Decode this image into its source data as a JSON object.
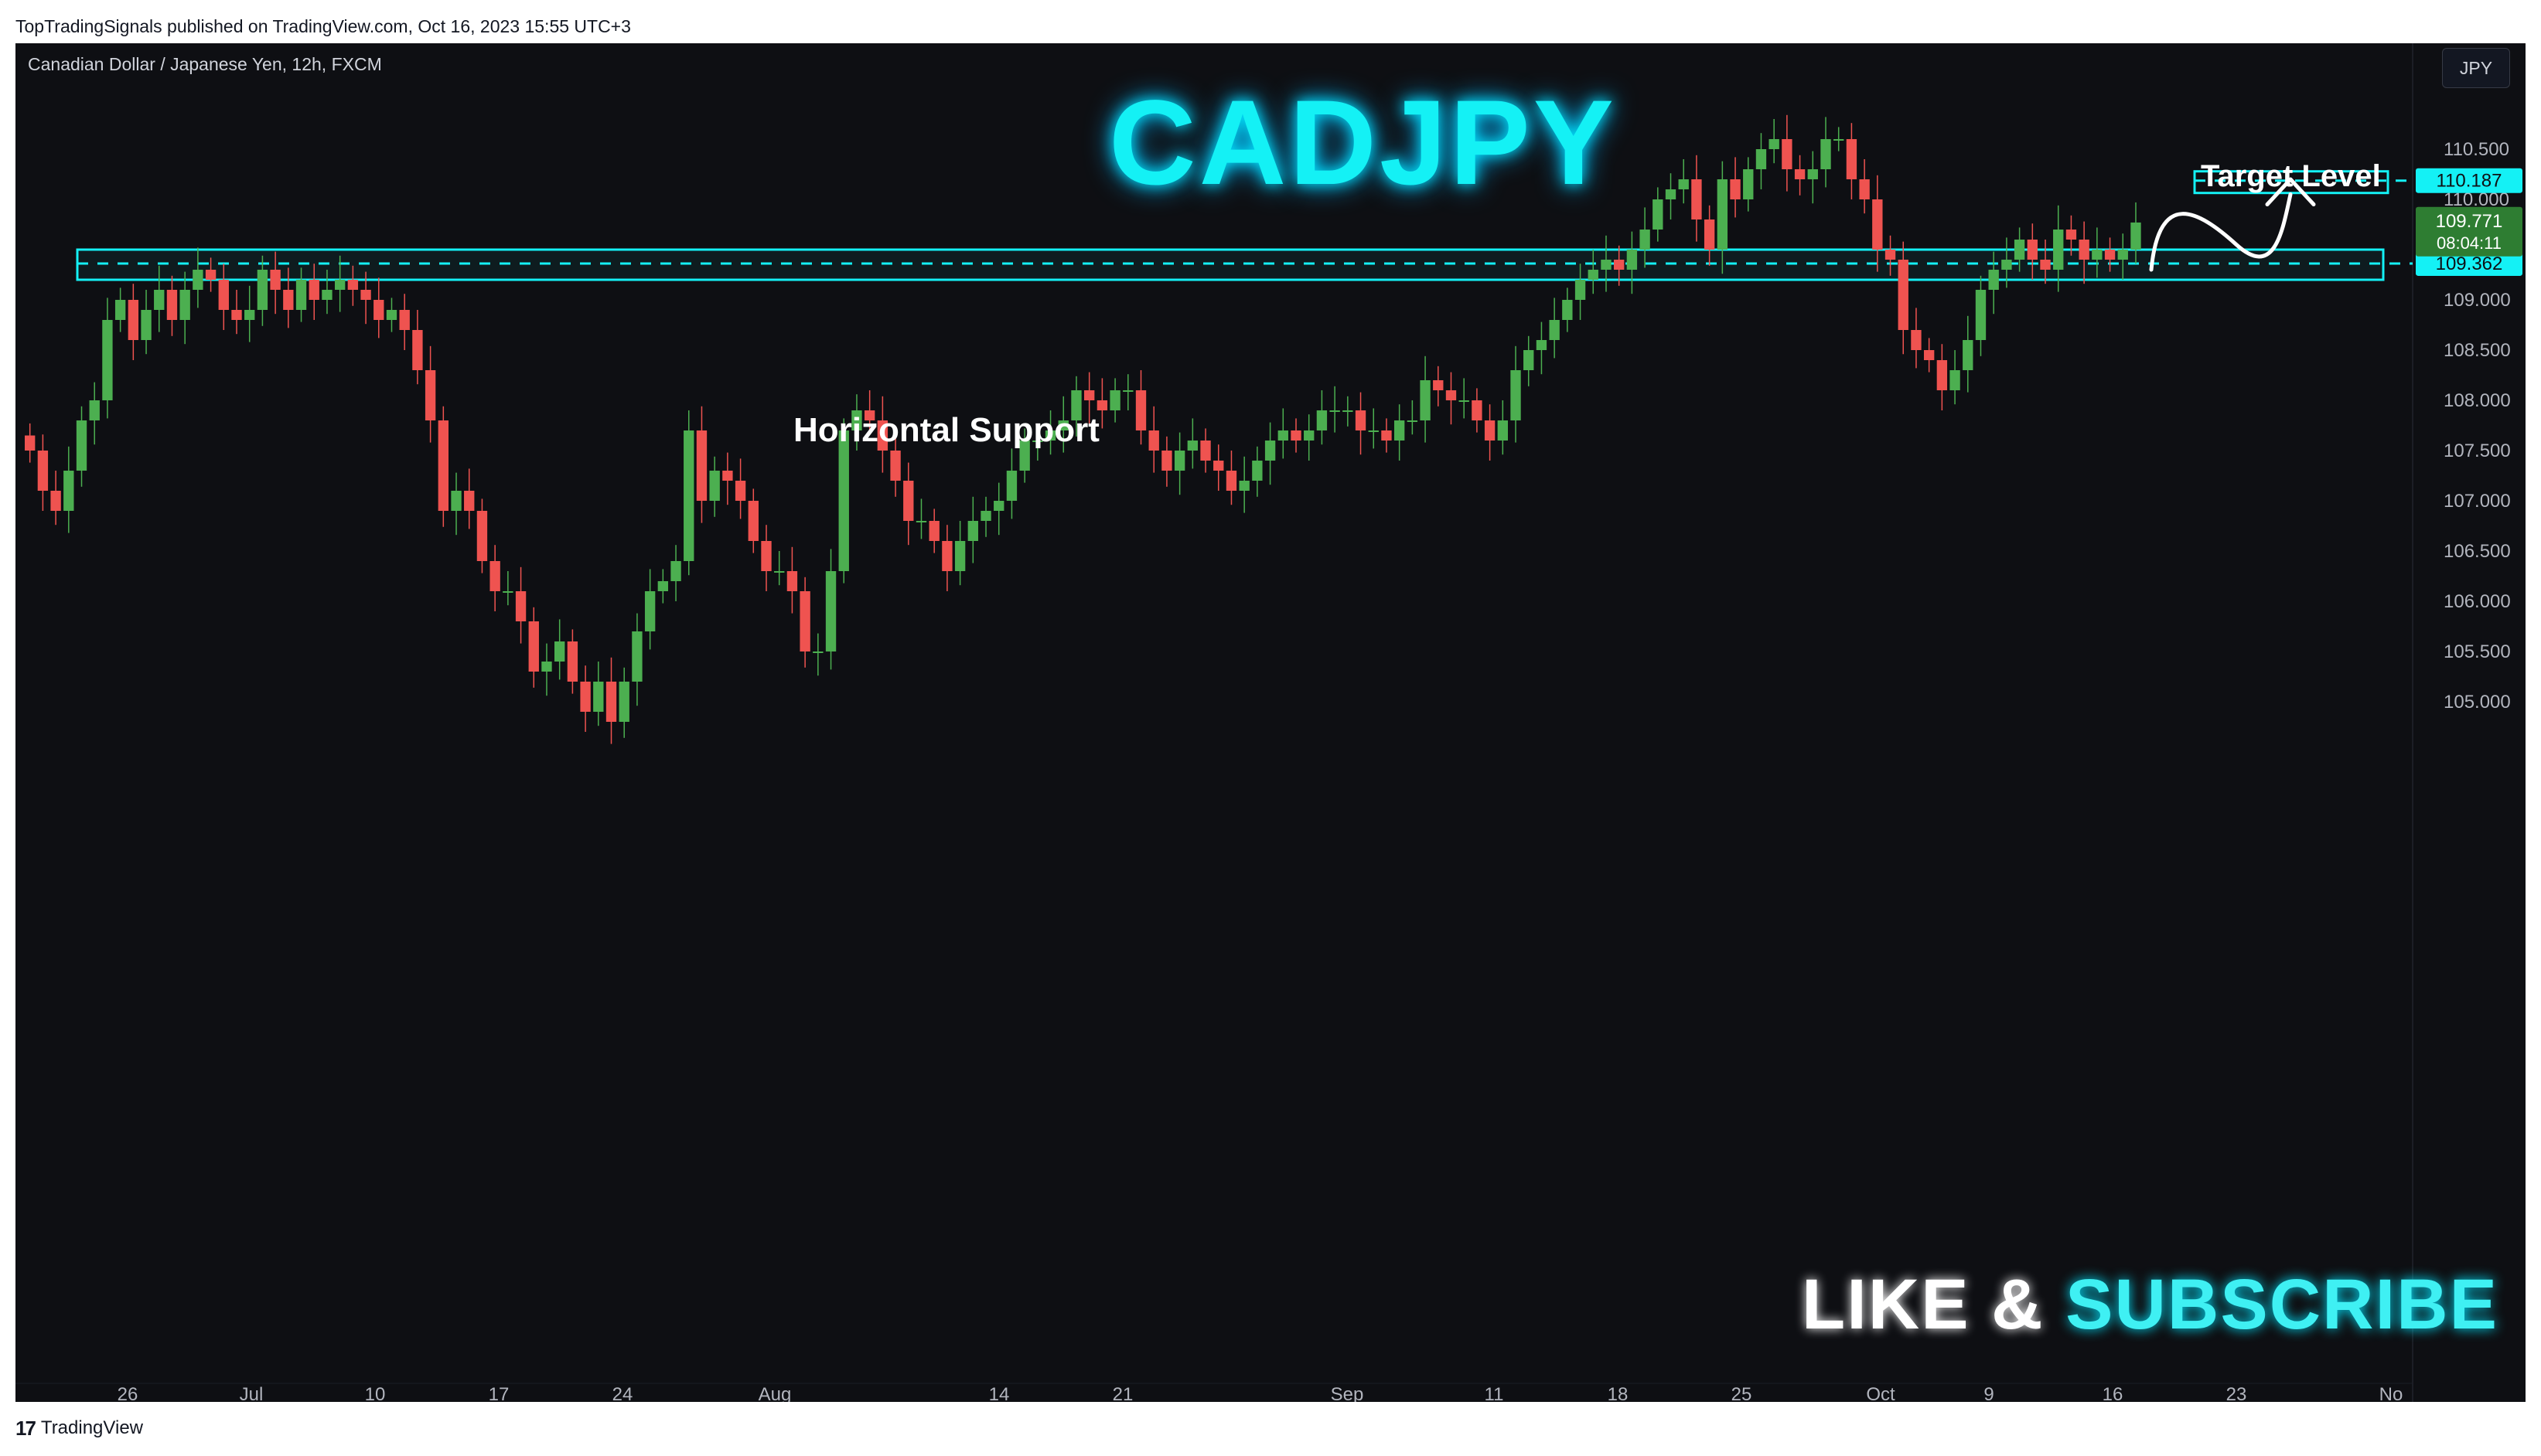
{
  "publish_info": "TopTradingSignals published on TradingView.com, Oct 16, 2023 15:55 UTC+3",
  "symbol_legend": "Canadian Dollar / Japanese Yen, 12h, FXCM",
  "currency_button": "JPY",
  "overlay": {
    "title": "CADJPY",
    "support_label": "Horizontal Support",
    "target_label": "Target Level",
    "cta_like": "LIKE &",
    "cta_subscribe": "SUBSCRIBE"
  },
  "footer": {
    "logo": "17",
    "brand": "TradingView"
  },
  "colors": {
    "background": "#0e0f13",
    "up": "#26a69a",
    "up_candle": "#4caf50",
    "down": "#ef5350",
    "accent": "#14f1f5"
  },
  "chart_data": {
    "type": "candlestick",
    "title": "",
    "symbol": "CADJPY",
    "interval": "12h",
    "ylim": [
      104.6,
      111.0
    ],
    "y_ticks": [
      "110.500",
      "110.000",
      "109.500",
      "109.000",
      "108.500",
      "108.000",
      "107.500",
      "107.000",
      "106.500",
      "106.000",
      "105.500",
      "105.000"
    ],
    "x_ticks": [
      "26",
      "Jul",
      "10",
      "17",
      "24",
      "Aug",
      "14",
      "21",
      "Sep",
      "11",
      "18",
      "25",
      "Oct",
      "9",
      "16",
      "23",
      "No"
    ],
    "current_price": "109.771",
    "countdown": "08:04:11",
    "support_level": "109.362",
    "target_level": "110.187",
    "support_zone": [
      109.2,
      109.5
    ],
    "closes": [
      107.5,
      107.1,
      106.9,
      107.3,
      107.8,
      108.0,
      108.8,
      109.0,
      108.6,
      108.9,
      109.1,
      108.8,
      109.1,
      109.3,
      109.2,
      108.9,
      108.8,
      108.9,
      109.3,
      109.1,
      108.9,
      109.2,
      109.0,
      109.1,
      109.2,
      109.1,
      109.0,
      108.8,
      108.9,
      108.7,
      108.3,
      107.8,
      106.9,
      107.1,
      106.9,
      106.4,
      106.1,
      106.1,
      105.8,
      105.3,
      105.4,
      105.6,
      105.2,
      104.9,
      105.2,
      104.8,
      105.2,
      105.7,
      106.1,
      106.2,
      106.4,
      107.7,
      107.0,
      107.3,
      107.2,
      107.0,
      106.6,
      106.3,
      106.3,
      106.1,
      105.5,
      105.5,
      106.3,
      107.7,
      107.9,
      107.8,
      107.5,
      107.2,
      106.8,
      106.8,
      106.6,
      106.3,
      106.6,
      106.8,
      106.9,
      107.0,
      107.3,
      107.6,
      107.6,
      107.7,
      107.8,
      108.1,
      108.0,
      107.9,
      108.1,
      108.1,
      107.7,
      107.5,
      107.3,
      107.5,
      107.6,
      107.4,
      107.3,
      107.1,
      107.2,
      107.4,
      107.6,
      107.7,
      107.6,
      107.7,
      107.9,
      107.9,
      107.9,
      107.7,
      107.7,
      107.6,
      107.8,
      107.8,
      108.2,
      108.1,
      108.0,
      108.0,
      107.8,
      107.6,
      107.8,
      108.3,
      108.5,
      108.6,
      108.8,
      109.0,
      109.2,
      109.3,
      109.4,
      109.3,
      109.5,
      109.7,
      110.0,
      110.1,
      110.2,
      109.8,
      109.5,
      110.2,
      110.0,
      110.3,
      110.5,
      110.6,
      110.3,
      110.2,
      110.3,
      110.6,
      110.6,
      110.2,
      110.0,
      109.5,
      109.4,
      108.7,
      108.5,
      108.4,
      108.1,
      108.3,
      108.6,
      109.1,
      109.3,
      109.4,
      109.6,
      109.4,
      109.3,
      109.7,
      109.6,
      109.4,
      109.5,
      109.4,
      109.5,
      109.77
    ]
  }
}
